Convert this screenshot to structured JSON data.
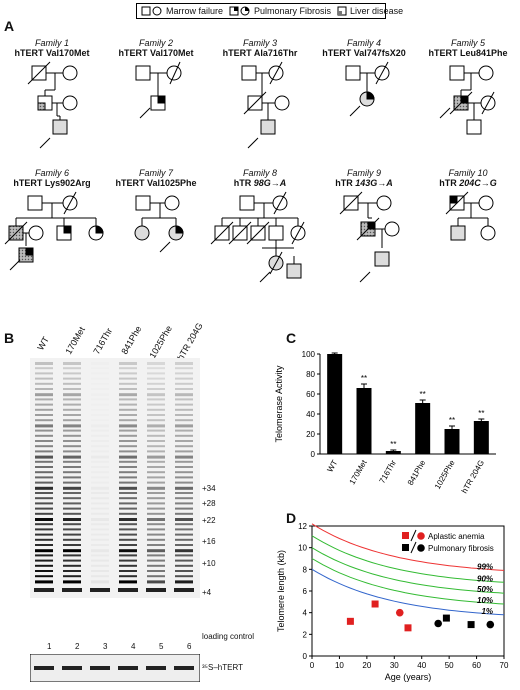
{
  "legend": {
    "marrow": "Marrow failure",
    "pulmonary": "Pulmonary Fibrosis",
    "liver": "Liver disease"
  },
  "panels": {
    "a": "A",
    "b": "B",
    "c": "C",
    "d": "D"
  },
  "families": [
    {
      "title": "Family 1",
      "gene": "hTERT Val170Met"
    },
    {
      "title": "Family 2",
      "gene": "hTERT Val170Met"
    },
    {
      "title": "Family 3",
      "gene": "hTERT Ala716Thr"
    },
    {
      "title": "Family 4",
      "gene": "hTERT Val747fsX20"
    },
    {
      "title": "Family 5",
      "gene": "hTERT Leu841Phe"
    },
    {
      "title": "Family 6",
      "gene": "hTERT Lys902Arg"
    },
    {
      "title": "Family 7",
      "gene": "hTERT Val1025Phe"
    },
    {
      "title": "Family 8",
      "gene": "hTR ",
      "mut": "98G→A"
    },
    {
      "title": "Family 9",
      "gene": "hTR ",
      "mut": "143G→A"
    },
    {
      "title": "Family 10",
      "gene": "hTR ",
      "mut": "204C→G"
    }
  ],
  "gel": {
    "lanes": [
      "WT",
      "170Met",
      "716Thr",
      "841Phe",
      "1025Phe",
      "hTR 204G"
    ],
    "lane_numbers": [
      "1",
      "2",
      "3",
      "4",
      "5",
      "6"
    ],
    "band_labels": [
      "+34",
      "+28",
      "+22",
      "+16",
      "+10",
      "+4"
    ],
    "loading_control": "loading control",
    "bottom_label": "³⁵S–hTERT"
  },
  "chart_data": [
    {
      "type": "bar",
      "ylabel": "Telomerase Activity",
      "categories": [
        "WT",
        "170Met",
        "716Thr",
        "841Phe",
        "1025Phe",
        "hTR 204G"
      ],
      "values": [
        100,
        66,
        3,
        51,
        25,
        33
      ],
      "errors": [
        1,
        4,
        1,
        3,
        3,
        2
      ],
      "significance": [
        "",
        "**",
        "**",
        "**",
        "**",
        "**"
      ],
      "ylim": [
        0,
        100
      ],
      "yticks": [
        0,
        20,
        40,
        60,
        80,
        100
      ]
    },
    {
      "type": "scatter",
      "xlabel": "Age (years)",
      "ylabel": "Telomere length (kb)",
      "xlim": [
        0,
        70
      ],
      "ylim": [
        0,
        12
      ],
      "xticks": [
        0,
        10,
        20,
        30,
        40,
        50,
        60,
        70
      ],
      "yticks": [
        0,
        2,
        4,
        6,
        8,
        10,
        12
      ],
      "legend": [
        "Aplastic anemia",
        "Pulmonary fibrosis"
      ],
      "percentile_labels": [
        "99%",
        "90%",
        "50%",
        "10%",
        "1%"
      ],
      "percentile_colors": [
        "#e33",
        "#3b3",
        "#3b3",
        "#3b3",
        "#36c"
      ],
      "percentile_curves": [
        {
          "label": "99%",
          "y0": 12.2,
          "y70": 7.9
        },
        {
          "label": "90%",
          "y0": 11.1,
          "y70": 6.8
        },
        {
          "label": "50%",
          "y0": 10.0,
          "y70": 5.8
        },
        {
          "label": "10%",
          "y0": 9.0,
          "y70": 4.8
        },
        {
          "label": "1%",
          "y0": 8.0,
          "y70": 3.8
        }
      ],
      "points": [
        {
          "x": 14,
          "y": 3.2,
          "shape": "square",
          "color": "red"
        },
        {
          "x": 23,
          "y": 4.8,
          "shape": "square",
          "color": "red"
        },
        {
          "x": 32,
          "y": 4.0,
          "shape": "circle",
          "color": "red"
        },
        {
          "x": 35,
          "y": 2.6,
          "shape": "square",
          "color": "red"
        },
        {
          "x": 46,
          "y": 3.0,
          "shape": "circle",
          "color": "black"
        },
        {
          "x": 49,
          "y": 3.5,
          "shape": "square",
          "color": "black"
        },
        {
          "x": 58,
          "y": 2.9,
          "shape": "square",
          "color": "black"
        },
        {
          "x": 65,
          "y": 2.9,
          "shape": "circle",
          "color": "black"
        }
      ]
    }
  ]
}
